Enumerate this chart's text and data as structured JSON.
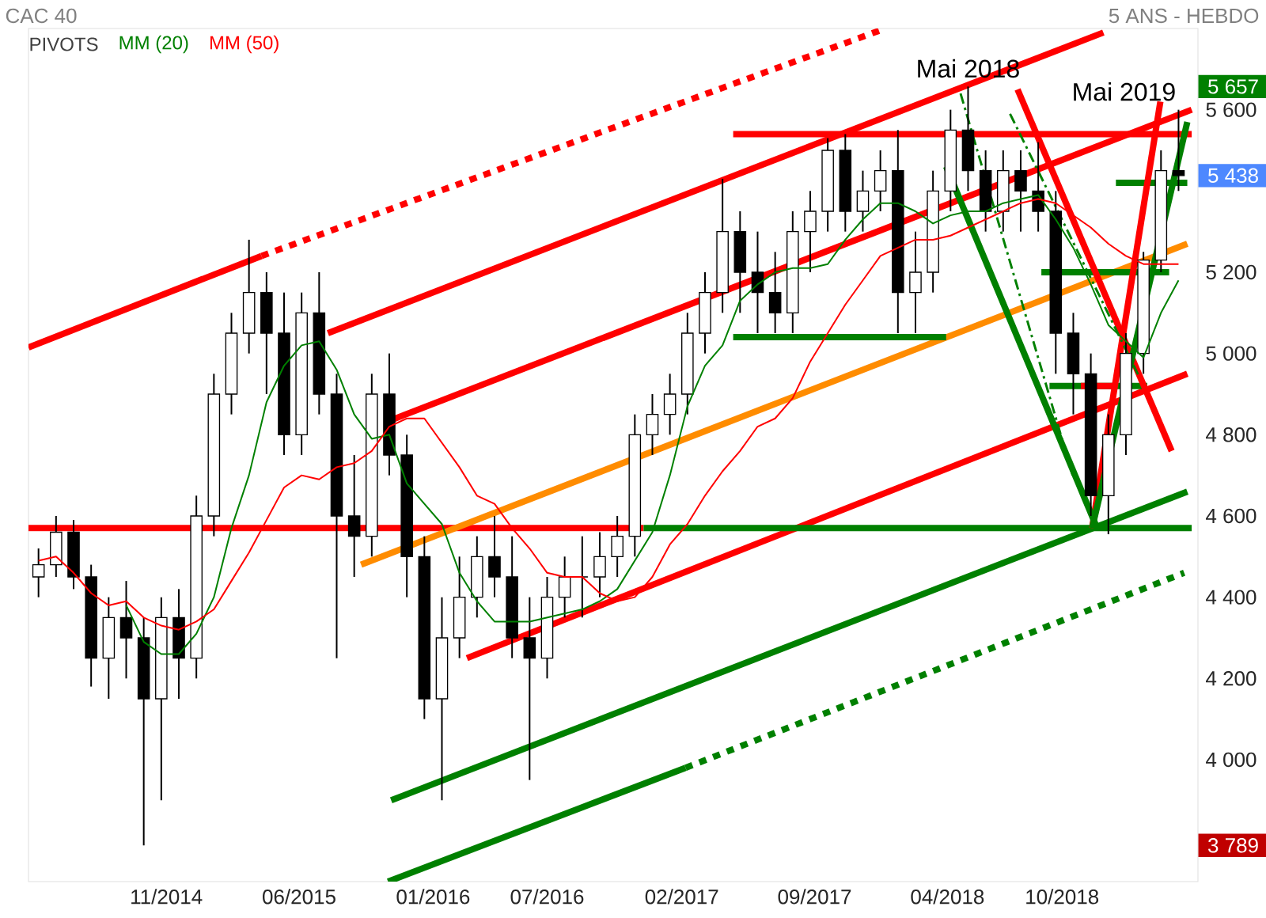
{
  "chart_data": {
    "type": "candlestick",
    "title": "CAC 40",
    "subtitle": "5 ANS - HEBDO",
    "x": [
      "2014-04-25",
      "2014-05-23",
      "2014-06-20",
      "2014-07-18",
      "2014-08-15",
      "2014-09-12",
      "2014-10-10",
      "2014-11-07",
      "2014-12-05",
      "2015-01-02",
      "2015-01-30",
      "2015-02-27",
      "2015-03-27",
      "2015-04-24",
      "2015-05-22",
      "2015-06-19",
      "2015-07-17",
      "2015-08-14",
      "2015-09-11",
      "2015-10-09",
      "2015-11-06",
      "2015-12-04",
      "2016-01-01",
      "2016-01-29",
      "2016-02-26",
      "2016-03-25",
      "2016-04-22",
      "2016-05-20",
      "2016-06-17",
      "2016-07-15",
      "2016-08-12",
      "2016-09-09",
      "2016-10-07",
      "2016-11-04",
      "2016-12-02",
      "2016-12-30",
      "2017-01-27",
      "2017-02-24",
      "2017-03-24",
      "2017-04-21",
      "2017-05-19",
      "2017-06-16",
      "2017-07-14",
      "2017-08-11",
      "2017-09-08",
      "2017-10-06",
      "2017-11-03",
      "2017-12-01",
      "2017-12-29",
      "2018-01-26",
      "2018-02-23",
      "2018-03-23",
      "2018-04-20",
      "2018-05-18",
      "2018-06-15",
      "2018-07-13",
      "2018-08-10",
      "2018-09-07",
      "2018-10-05",
      "2018-11-02",
      "2018-11-30",
      "2018-12-28",
      "2019-01-25",
      "2019-02-22",
      "2019-03-22",
      "2019-04-19"
    ],
    "ohlc": [
      [
        4450,
        4520,
        4400,
        4480
      ],
      [
        4480,
        4600,
        4450,
        4560
      ],
      [
        4560,
        4590,
        4420,
        4450
      ],
      [
        4450,
        4480,
        4180,
        4250
      ],
      [
        4250,
        4400,
        4150,
        4350
      ],
      [
        4350,
        4440,
        4200,
        4300
      ],
      [
        4300,
        4350,
        3789,
        4150
      ],
      [
        4150,
        4400,
        3900,
        4350
      ],
      [
        4350,
        4420,
        4150,
        4250
      ],
      [
        4250,
        4650,
        4200,
        4600
      ],
      [
        4600,
        4950,
        4550,
        4900
      ],
      [
        4900,
        5100,
        4850,
        5050
      ],
      [
        5050,
        5280,
        5000,
        5150
      ],
      [
        5150,
        5200,
        4900,
        5050
      ],
      [
        5050,
        5150,
        4750,
        4800
      ],
      [
        4800,
        5150,
        4750,
        5100
      ],
      [
        5100,
        5200,
        4850,
        4900
      ],
      [
        4900,
        4950,
        4250,
        4600
      ],
      [
        4600,
        4750,
        4450,
        4550
      ],
      [
        4550,
        4950,
        4500,
        4900
      ],
      [
        4900,
        5000,
        4700,
        4750
      ],
      [
        4750,
        4800,
        4400,
        4500
      ],
      [
        4500,
        4550,
        4100,
        4150
      ],
      [
        4150,
        4400,
        3900,
        4300
      ],
      [
        4300,
        4500,
        4250,
        4400
      ],
      [
        4400,
        4550,
        4350,
        4500
      ],
      [
        4500,
        4600,
        4400,
        4450
      ],
      [
        4450,
        4550,
        4250,
        4300
      ],
      [
        4300,
        4400,
        3950,
        4250
      ],
      [
        4250,
        4450,
        4200,
        4400
      ],
      [
        4400,
        4500,
        4350,
        4450
      ],
      [
        4450,
        4550,
        4350,
        4450
      ],
      [
        4450,
        4560,
        4400,
        4500
      ],
      [
        4500,
        4600,
        4450,
        4550
      ],
      [
        4550,
        4850,
        4500,
        4800
      ],
      [
        4800,
        4900,
        4750,
        4850
      ],
      [
        4850,
        4950,
        4800,
        4900
      ],
      [
        4900,
        5100,
        4850,
        5050
      ],
      [
        5050,
        5200,
        5000,
        5150
      ],
      [
        5150,
        5430,
        5100,
        5300
      ],
      [
        5300,
        5350,
        5100,
        5200
      ],
      [
        5200,
        5300,
        5050,
        5150
      ],
      [
        5150,
        5250,
        5050,
        5100
      ],
      [
        5100,
        5350,
        5050,
        5300
      ],
      [
        5300,
        5400,
        5200,
        5350
      ],
      [
        5350,
        5530,
        5300,
        5500
      ],
      [
        5500,
        5540,
        5300,
        5350
      ],
      [
        5350,
        5450,
        5300,
        5400
      ],
      [
        5400,
        5500,
        5350,
        5450
      ],
      [
        5450,
        5550,
        5050,
        5150
      ],
      [
        5150,
        5300,
        5050,
        5200
      ],
      [
        5200,
        5450,
        5150,
        5400
      ],
      [
        5400,
        5600,
        5350,
        5550
      ],
      [
        5550,
        5657,
        5400,
        5450
      ],
      [
        5450,
        5500,
        5300,
        5350
      ],
      [
        5350,
        5500,
        5300,
        5450
      ],
      [
        5450,
        5500,
        5300,
        5400
      ],
      [
        5400,
        5520,
        5300,
        5350
      ],
      [
        5350,
        5400,
        4950,
        5050
      ],
      [
        5050,
        5100,
        4850,
        4950
      ],
      [
        4950,
        5000,
        4600,
        4650
      ],
      [
        4650,
        4850,
        4555,
        4800
      ],
      [
        4800,
        5050,
        4750,
        5000
      ],
      [
        5000,
        5250,
        4950,
        5230
      ],
      [
        5230,
        5500,
        5200,
        5450
      ],
      [
        5450,
        5600,
        5400,
        5438
      ]
    ],
    "series": [
      {
        "name": "MM (20)",
        "type": "line",
        "color": "#008000",
        "values": [
          null,
          null,
          null,
          null,
          null,
          4380,
          4290,
          4260,
          4260,
          4310,
          4400,
          4570,
          4700,
          4880,
          4970,
          5020,
          5030,
          4960,
          4850,
          4790,
          4800,
          4680,
          4630,
          4580,
          4460,
          4390,
          4340,
          4340,
          4340,
          4350,
          4360,
          4370,
          4390,
          4420,
          4490,
          4560,
          4700,
          4870,
          4970,
          5020,
          5130,
          5170,
          5200,
          5210,
          5210,
          5220,
          5280,
          5330,
          5370,
          5370,
          5350,
          5320,
          5340,
          5350,
          5350,
          5370,
          5380,
          5390,
          5330,
          5260,
          5170,
          5070,
          5030,
          4990,
          5100,
          5180
        ]
      },
      {
        "name": "MM (50)",
        "type": "line",
        "color": "#ff0000",
        "values": [
          4490,
          4500,
          4460,
          4410,
          4380,
          4390,
          4350,
          4330,
          4320,
          4340,
          4370,
          4440,
          4510,
          4590,
          4670,
          4700,
          4690,
          4720,
          4730,
          4760,
          4820,
          4840,
          4840,
          4780,
          4720,
          4650,
          4630,
          4570,
          4520,
          4460,
          4450,
          4450,
          4410,
          4390,
          4400,
          4450,
          4530,
          4580,
          4650,
          4710,
          4760,
          4820,
          4840,
          4890,
          4980,
          5050,
          5120,
          5180,
          5240,
          5260,
          5280,
          5280,
          5290,
          5310,
          5330,
          5350,
          5370,
          5380,
          5370,
          5340,
          5310,
          5270,
          5240,
          5220,
          5220,
          5220
        ]
      },
      {
        "type": "line",
        "color": "#ff0000",
        "x": [
          "2014-04-09",
          "2015-04-16"
        ],
        "values": [
          5015,
          5240
        ]
      },
      {
        "type": "line",
        "color": "#ff0000",
        "line_style": "dotted",
        "x": [
          "2015-04-16",
          "2018-01-06"
        ],
        "values": [
          5240,
          5800
        ]
      },
      {
        "type": "line",
        "color": "#ff0000",
        "x": [
          "2015-07-31",
          "2018-12-20"
        ],
        "values": [
          5050,
          5790
        ]
      },
      {
        "type": "line",
        "color": "#ff0000",
        "x": [
          "2015-10-30",
          "2019-05-10"
        ],
        "values": [
          4830,
          5600
        ]
      },
      {
        "type": "line",
        "color": "#ff0000",
        "x": [
          "2016-03-09",
          "2019-05-03"
        ],
        "values": [
          4250,
          4950
        ]
      },
      {
        "type": "line",
        "color": "#ff0000",
        "x": [
          "2014-04-09",
          "2016-12-16"
        ],
        "values": [
          4570,
          4570
        ]
      },
      {
        "type": "line",
        "color": "#008000",
        "x": [
          "2016-12-16",
          "2019-05-10"
        ],
        "values": [
          4570,
          4570
        ]
      },
      {
        "type": "line",
        "color": "#ff0000",
        "x": [
          "2017-05-08",
          "2019-05-10"
        ],
        "values": [
          5540,
          5540
        ]
      },
      {
        "type": "line",
        "color": "#ff8c00",
        "x": [
          "2015-09-22",
          "2019-05-03"
        ],
        "values": [
          4480,
          5270
        ]
      },
      {
        "type": "line",
        "color": "#008000",
        "x": [
          "2015-11-09",
          "2019-05-03"
        ],
        "values": [
          3900,
          4660
        ]
      },
      {
        "type": "line",
        "color": "#008000",
        "x": [
          "2015-11-04",
          "2017-02-21"
        ],
        "values": [
          3700,
          3980
        ]
      },
      {
        "type": "line",
        "color": "#008000",
        "line_style": "dotted",
        "x": [
          "2017-02-21",
          "2019-04-28"
        ],
        "values": [
          3980,
          4460
        ]
      },
      {
        "type": "line",
        "color": "#008000",
        "x": [
          "2017-05-08",
          "2018-04-13"
        ],
        "values": [
          5040,
          5040
        ]
      },
      {
        "type": "line",
        "color": "#008000",
        "x": [
          "2018-09-12",
          "2019-04-04"
        ],
        "values": [
          5200,
          5200
        ]
      },
      {
        "type": "line",
        "color": "#008000",
        "x": [
          "2019-01-09",
          "2019-05-03"
        ],
        "values": [
          5420,
          5420
        ]
      },
      {
        "type": "line",
        "color": "#008000",
        "x": [
          "2018-09-25",
          "2019-02-28"
        ],
        "values": [
          4920,
          4920
        ]
      },
      {
        "type": "line",
        "color": "#ff0000",
        "x": [
          "2018-11-14",
          "2019-01-09"
        ],
        "values": [
          4920,
          4920
        ]
      },
      {
        "type": "line",
        "color": "#ff0000",
        "x": [
          "2018-08-05",
          "2019-04-08"
        ],
        "values": [
          5650,
          4760
        ]
      },
      {
        "type": "line",
        "color": "#ff0000",
        "x": [
          "2018-12-02",
          "2019-03-21"
        ],
        "values": [
          4570,
          5620
        ]
      },
      {
        "type": "line",
        "color": "#008000",
        "x": [
          "2018-04-13",
          "2018-12-10"
        ],
        "values": [
          5460,
          4570
        ]
      },
      {
        "type": "line",
        "color": "#008000",
        "x": [
          "2018-12-02",
          "2019-05-03"
        ],
        "values": [
          4570,
          5570
        ]
      },
      {
        "type": "line",
        "color": "#008000",
        "line_style": "dashed",
        "x": [
          "2018-05-06",
          "2018-11-01"
        ],
        "values": [
          5640,
          4700
        ]
      },
      {
        "type": "line",
        "color": "#008000",
        "line_style": "dashed",
        "x": [
          "2018-07-24",
          "2019-02-16"
        ],
        "values": [
          5590,
          4940
        ]
      }
    ],
    "xlim": [
      "2014-04-09",
      "2019-05-20"
    ],
    "ylim": [
      3700,
      5800
    ],
    "xticks": [
      {
        "value": "2014-11-15",
        "label": "11/2014"
      },
      {
        "value": "2015-06-15",
        "label": "06/2015"
      },
      {
        "value": "2016-01-15",
        "label": "01/2016"
      },
      {
        "value": "2016-07-15",
        "label": "07/2016"
      },
      {
        "value": "2017-02-15",
        "label": "02/2017"
      },
      {
        "value": "2017-09-15",
        "label": "09/2017"
      },
      {
        "value": "2018-04-15",
        "label": "04/2018"
      },
      {
        "value": "2018-10-15",
        "label": "10/2018"
      }
    ],
    "yticks": [
      {
        "value": 4000,
        "label": "4 000"
      },
      {
        "value": 4200,
        "label": "4 200"
      },
      {
        "value": 4400,
        "label": "4 400"
      },
      {
        "value": 4600,
        "label": "4 600"
      },
      {
        "value": 4800,
        "label": "4 800"
      },
      {
        "value": 5000,
        "label": "5 000"
      },
      {
        "value": 5200,
        "label": "5 200"
      },
      {
        "value": 5600,
        "label": "5 600"
      }
    ],
    "legend": "top left",
    "annotations": [
      "PIVOTS",
      {
        "text": "Mai 2018",
        "x": "2018-05-18",
        "y": 5657
      },
      {
        "text": "Mai 2019",
        "x": "2019-04-19",
        "y": 5600
      },
      "5 657",
      "5 438",
      "3 789"
    ]
  }
}
